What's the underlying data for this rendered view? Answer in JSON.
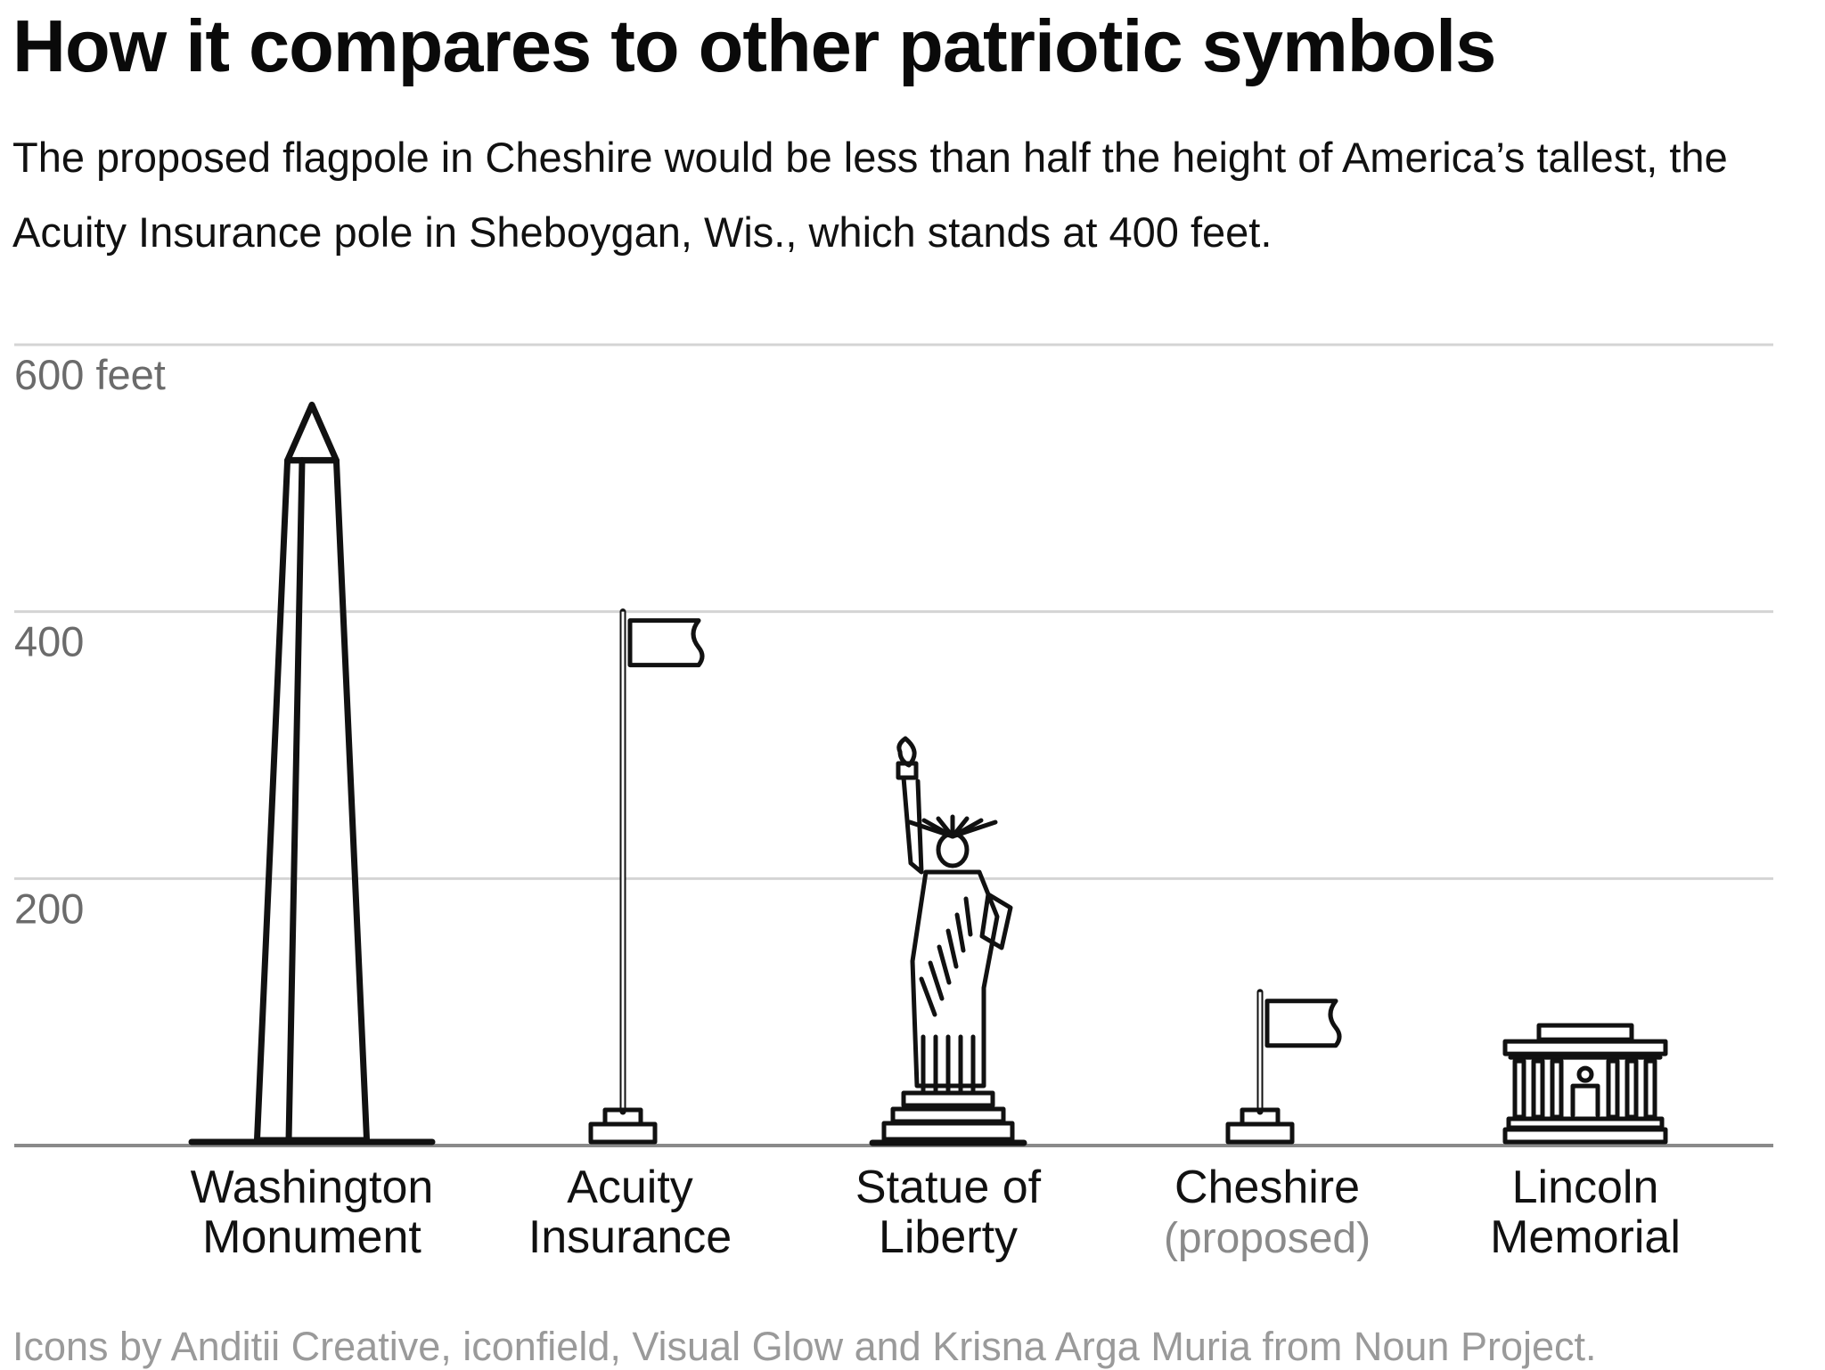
{
  "header": {
    "title": "How it compares to other patriotic symbols",
    "subtitle": "The proposed flagpole in Cheshire would be less than half the height of America’s tallest, the Acuity Insurance pole in Sheboygan, Wis., which stands at 400 feet."
  },
  "footer": {
    "credit": "Icons by Anditii Creative, iconfield, Visual Glow and Krisna Arga Muria from Noun Project."
  },
  "chart_data": {
    "type": "bar",
    "ylim": [
      0,
      600
    ],
    "y_ticks": [
      {
        "value": 200,
        "label": "200"
      },
      {
        "value": 400,
        "label": "400"
      },
      {
        "value": 600,
        "label": "600 feet"
      }
    ],
    "categories": [
      {
        "lines": [
          "Washington",
          "Monument"
        ],
        "icon": "obelisk-icon",
        "value": 555
      },
      {
        "lines": [
          "Acuity",
          "Insurance"
        ],
        "icon": "flagpole-icon",
        "value": 400
      },
      {
        "lines": [
          "Statue of",
          "Liberty"
        ],
        "icon": "statue-of-liberty-icon",
        "value": 305
      },
      {
        "lines": [
          "Cheshire",
          "(proposed)"
        ],
        "icon": "flagpole-icon",
        "value": 115
      },
      {
        "lines": [
          "Lincoln",
          "Memorial"
        ],
        "icon": "lincoln-memorial-icon",
        "value": 90
      }
    ],
    "colors": {
      "ink": "#111111",
      "grid": "#d4d4d4",
      "baseline": "#8a8a8a",
      "tick": "#6b6b6b",
      "muted": "#8a8a8a"
    }
  }
}
